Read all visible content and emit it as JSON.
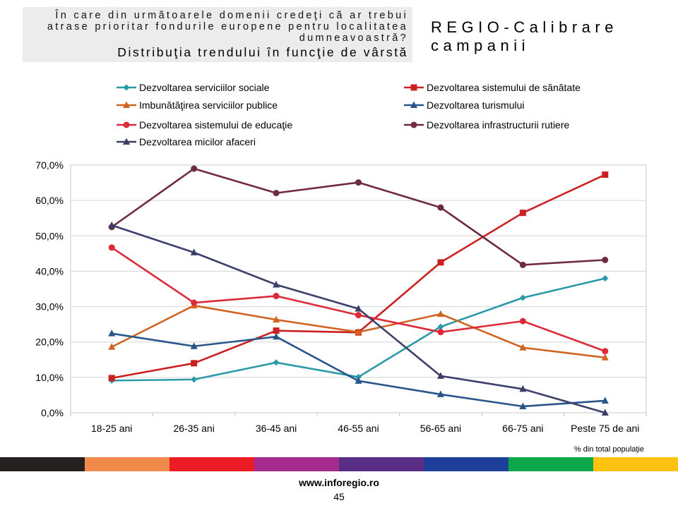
{
  "header": {
    "question": "În care din următoarele domenii credeţi că ar trebui atrase prioritar fondurile europene pentru localitatea dumneavoastră?",
    "subtitle": "Distribuţia trendului în funcţie de vârstă",
    "campaign_title": "REGIO-Calibrare campanii"
  },
  "chart_data": {
    "type": "line",
    "categories": [
      "18-25 ani",
      "26-35 ani",
      "36-45 ani",
      "46-55 ani",
      "56-65 ani",
      "66-75 ani",
      "Peste 75 de ani"
    ],
    "ylim": [
      0,
      70
    ],
    "y_ticks": [
      "0,0%",
      "10,0%",
      "20,0%",
      "30,0%",
      "40,0%",
      "50,0%",
      "60,0%",
      "70,0%"
    ],
    "grid": true,
    "legend_position": "top",
    "note": "% din total populaţie",
    "series": [
      {
        "name": "Dezvoltarea serviciilor sociale",
        "color": "#2a9aa8",
        "marker": "diamond",
        "values": [
          9.1,
          9.4,
          14.2,
          10.1,
          24.3,
          32.5,
          38.0
        ]
      },
      {
        "name": "Dezvoltarea sistemului de sănătate",
        "color": "#cc1f1f",
        "marker": "square",
        "values": [
          9.8,
          14.0,
          23.2,
          22.7,
          42.5,
          56.5,
          67.3
        ]
      },
      {
        "name": "Imbunătăţirea serviciilor publice",
        "color": "#d06522",
        "marker": "triangle",
        "values": [
          18.6,
          30.3,
          26.3,
          22.8,
          27.9,
          18.4,
          15.6
        ]
      },
      {
        "name": "Dezvoltarea turismului",
        "color": "#28568a",
        "marker": "triangle",
        "values": [
          22.4,
          18.8,
          21.5,
          9.0,
          5.2,
          1.8,
          3.4
        ]
      },
      {
        "name": "Dezvoltarea sistemului de educaţie",
        "color": "#dd2a3a",
        "marker": "circle",
        "values": [
          46.7,
          31.1,
          33.0,
          27.6,
          22.8,
          25.9,
          17.4
        ]
      },
      {
        "name": "Dezvoltarea infrastructurii rutiere",
        "color": "#6f2b3e",
        "marker": "circle",
        "values": [
          52.5,
          69.0,
          62.1,
          65.1,
          58.0,
          41.8,
          43.2
        ]
      },
      {
        "name": "Dezvoltarea micilor afaceri",
        "color": "#3c3f6a",
        "marker": "triangle",
        "values": [
          53.0,
          45.3,
          36.2,
          29.4,
          10.4,
          6.7,
          0.0
        ]
      }
    ]
  },
  "color_bar": [
    "#262020",
    "#f28a4b",
    "#ec1c24",
    "#a62b8e",
    "#5a2d86",
    "#1d3f9a",
    "#0da64a",
    "#fcc20f"
  ],
  "footer": {
    "url": "www.inforegio.ro",
    "page_number": "45"
  }
}
